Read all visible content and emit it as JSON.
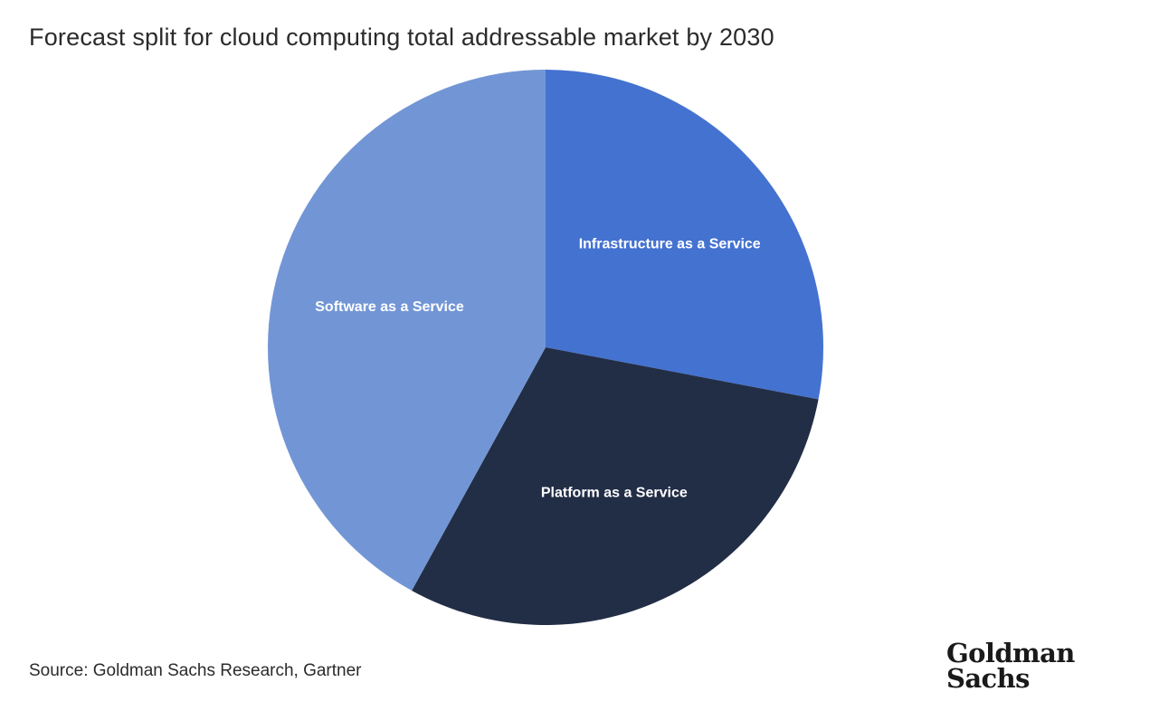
{
  "title": "Forecast split for cloud computing total addressable market by 2030",
  "source": "Source: Goldman Sachs Research, Gartner",
  "brand": {
    "line1": "Goldman",
    "line2": "Sachs"
  },
  "colors": {
    "infrastructure": "#4472d0",
    "platform": "#222e46",
    "software": "#7296d5",
    "label": "#ffffff"
  },
  "chart_data": {
    "type": "pie",
    "title": "Forecast split for cloud computing total addressable market by 2030",
    "start_angle_deg": 0,
    "direction": "clockwise",
    "slices": [
      {
        "label": "Infrastructure as a Service",
        "value": 28,
        "color": "#4472d0"
      },
      {
        "label": "Platform as a Service",
        "value": 30,
        "color": "#222e46"
      },
      {
        "label": "Software as a Service",
        "value": 42,
        "color": "#7296d5"
      }
    ],
    "legend": "none",
    "data_labels": "inside"
  }
}
